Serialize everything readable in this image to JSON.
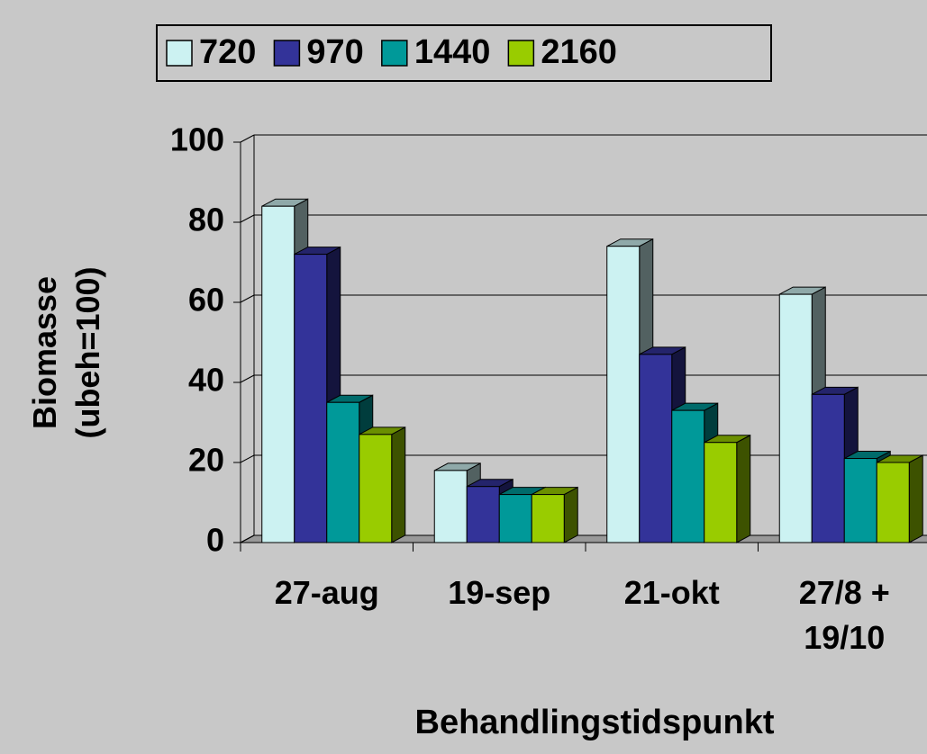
{
  "chart_data": {
    "type": "bar3d",
    "y_label": "Biomasse (ubeh=100)",
    "x_label": "Behandlingstidspunkt",
    "categories": [
      "27-aug",
      "19-sep",
      "21-okt",
      "27/8 + 19/10"
    ],
    "series": [
      {
        "name": "720",
        "color": "#ccf2f2",
        "values": [
          84,
          18,
          74,
          62
        ]
      },
      {
        "name": "970",
        "color": "#333399",
        "values": [
          72,
          14,
          47,
          37
        ]
      },
      {
        "name": "1440",
        "color": "#009999",
        "values": [
          35,
          12,
          33,
          21
        ]
      },
      {
        "name": "2160",
        "color": "#99cc00",
        "values": [
          27,
          12,
          25,
          20
        ]
      }
    ],
    "ylim": [
      0,
      100
    ],
    "yticks": [
      0,
      20,
      40,
      60,
      80,
      100
    ],
    "grid": true,
    "legend": "top"
  }
}
